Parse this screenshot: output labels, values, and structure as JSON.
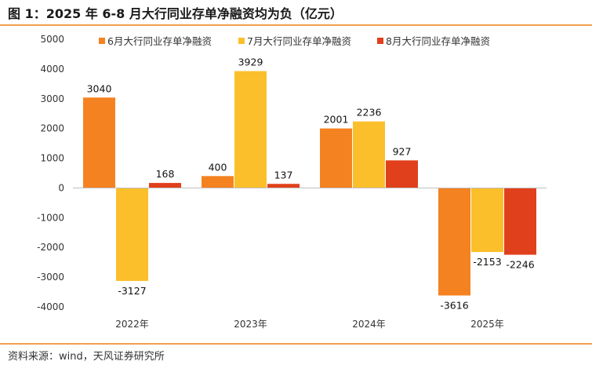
{
  "figure": {
    "title": "图 1：2025 年 6-8 月大行同业存单净融资均为负（亿元）",
    "source": "资料来源：wind，天风证券研究所"
  },
  "chart_data": {
    "type": "bar",
    "categories": [
      "2022年",
      "2023年",
      "2024年",
      "2025年"
    ],
    "series": [
      {
        "name": "6月大行同业存单净融资",
        "color": "#F58220",
        "values": [
          3040,
          400,
          2001,
          -3616
        ]
      },
      {
        "name": "7月大行同业存单净融资",
        "color": "#FBBF2B",
        "values": [
          -3127,
          3929,
          2236,
          -2153
        ]
      },
      {
        "name": "8月大行同业存单净融资",
        "color": "#E1401C",
        "values": [
          168,
          137,
          927,
          -2246
        ]
      }
    ],
    "ylim": [
      -4000,
      5000
    ],
    "yticks": [
      "5000",
      "4000",
      "3000",
      "2000",
      "1000",
      "0",
      "-1000",
      "-2000",
      "-3000",
      "-4000"
    ],
    "legend": "top-right",
    "grid": false
  }
}
